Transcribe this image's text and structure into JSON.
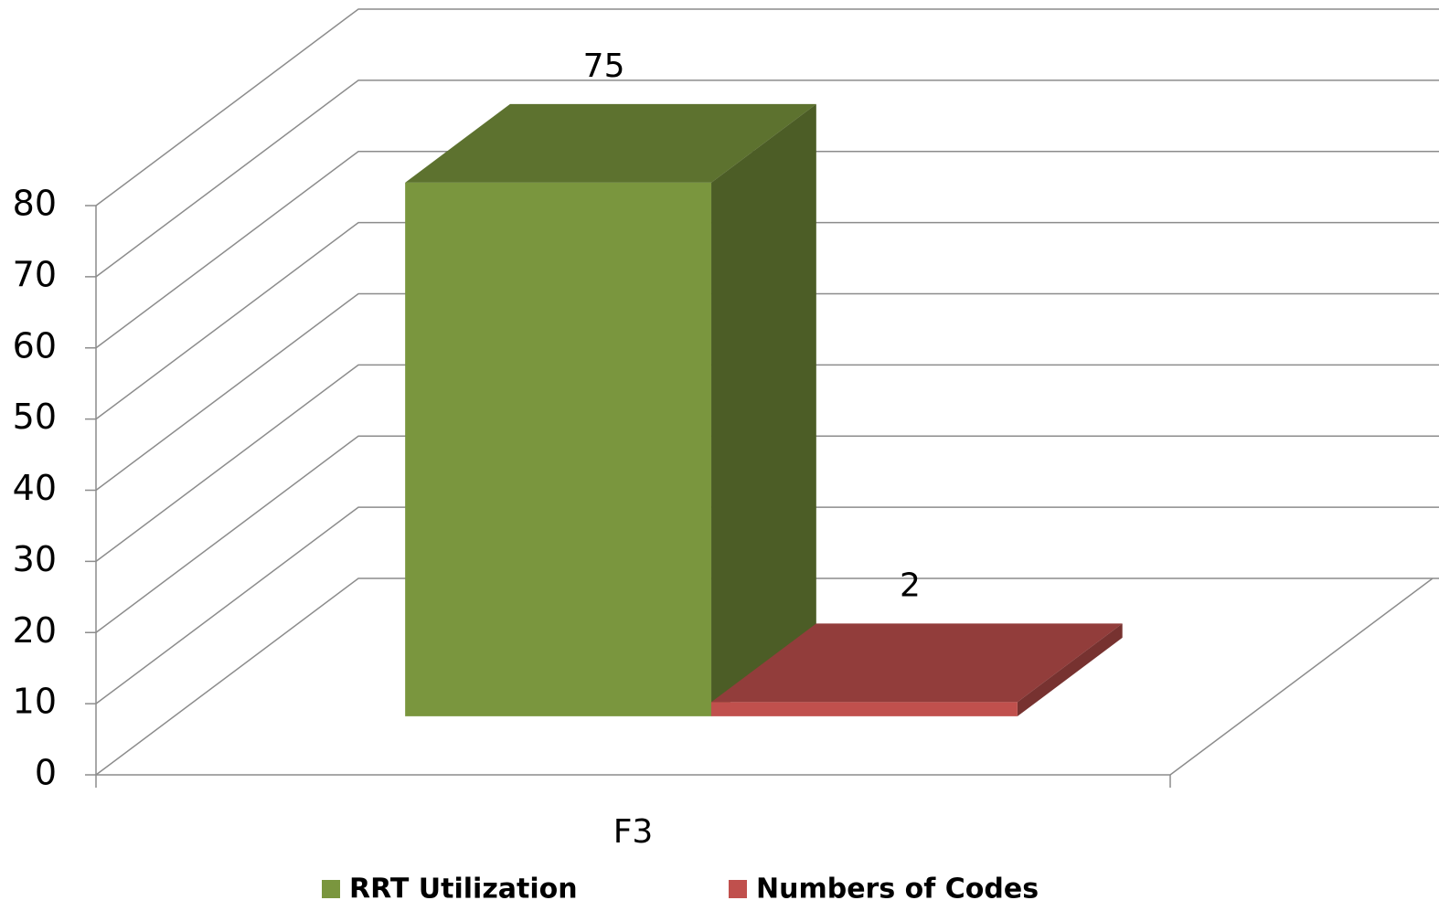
{
  "chart_data": {
    "type": "bar3d",
    "categories": [
      "F3"
    ],
    "series": [
      {
        "name": "RRT Utilization",
        "color": "#7a963e",
        "values": [
          75
        ]
      },
      {
        "name": "Numbers of Codes",
        "color": "#c0504d",
        "values": [
          2
        ]
      }
    ],
    "ylim": [
      0,
      80
    ],
    "yticks": [
      0,
      10,
      20,
      30,
      40,
      50,
      60,
      70,
      80
    ],
    "grid": true,
    "legend": "bottom"
  }
}
